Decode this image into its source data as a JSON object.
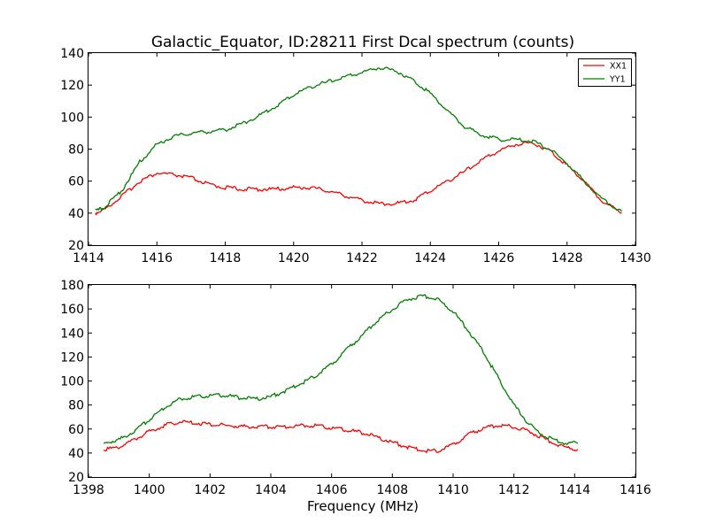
{
  "figure": {
    "title": "Galactic_Equator, ID:28211 First Dcal spectrum (counts)"
  },
  "chart_data": [
    {
      "type": "line",
      "title": "Galactic_Equator, ID:28211 First Dcal spectrum (counts)",
      "xlabel": "",
      "ylabel": "",
      "xlim": [
        1414,
        1430
      ],
      "ylim": [
        20,
        140
      ],
      "xticks": [
        "1414",
        "1416",
        "1418",
        "1420",
        "1422",
        "1424",
        "1426",
        "1428",
        "1430"
      ],
      "yticks": [
        "20",
        "40",
        "60",
        "80",
        "100",
        "120",
        "140"
      ],
      "grid": false,
      "legend": "top-right",
      "x": [
        1414.2,
        1414.5,
        1415.0,
        1415.5,
        1416.0,
        1416.5,
        1417.0,
        1417.5,
        1418.0,
        1418.5,
        1419.0,
        1419.5,
        1420.0,
        1420.5,
        1421.0,
        1421.5,
        1422.0,
        1422.5,
        1423.0,
        1423.5,
        1424.0,
        1424.5,
        1425.0,
        1425.5,
        1426.0,
        1426.5,
        1427.0,
        1427.5,
        1428.0,
        1428.5,
        1429.0,
        1429.6
      ],
      "series": [
        {
          "name": "XX1",
          "color": "#ff0000",
          "values": [
            40,
            43,
            51,
            60,
            65,
            64,
            62,
            58,
            56,
            55,
            55,
            55,
            56,
            56,
            54,
            51,
            48,
            46,
            46,
            48,
            54,
            60,
            66,
            73,
            79,
            83,
            84,
            79,
            70,
            60,
            48,
            40
          ]
        },
        {
          "name": "YY1",
          "color": "#008000",
          "values": [
            41,
            44,
            55,
            72,
            83,
            88,
            90,
            91,
            92,
            96,
            101,
            107,
            114,
            119,
            122,
            125,
            128,
            131,
            129,
            123,
            115,
            104,
            94,
            89,
            86,
            86,
            85,
            80,
            71,
            60,
            49,
            41
          ]
        }
      ]
    },
    {
      "type": "line",
      "title": "",
      "xlabel": "Frequency (MHz)",
      "ylabel": "",
      "xlim": [
        1398,
        1416
      ],
      "ylim": [
        20,
        180
      ],
      "xticks": [
        "1398",
        "1400",
        "1402",
        "1404",
        "1406",
        "1408",
        "1410",
        "1412",
        "1414",
        "1416"
      ],
      "yticks": [
        "20",
        "40",
        "60",
        "80",
        "100",
        "120",
        "140",
        "160",
        "180"
      ],
      "grid": false,
      "x": [
        1398.5,
        1399.0,
        1399.5,
        1400.0,
        1400.5,
        1401.0,
        1401.5,
        1402.0,
        1402.5,
        1403.0,
        1403.5,
        1404.0,
        1404.5,
        1405.0,
        1405.5,
        1406.0,
        1406.5,
        1407.0,
        1407.5,
        1408.0,
        1408.5,
        1409.0,
        1409.5,
        1410.0,
        1410.5,
        1411.0,
        1411.5,
        1412.0,
        1412.5,
        1413.0,
        1413.5,
        1414.1
      ],
      "series": [
        {
          "name": "XX1",
          "color": "#ff0000",
          "values": [
            43,
            45,
            51,
            58,
            63,
            66,
            65,
            64,
            63,
            62,
            62,
            62,
            62,
            63,
            63,
            61,
            59,
            57,
            53,
            49,
            45,
            42,
            42,
            47,
            55,
            61,
            63,
            62,
            58,
            52,
            46,
            43
          ]
        },
        {
          "name": "YY1",
          "color": "#008000",
          "values": [
            48,
            51,
            58,
            68,
            78,
            85,
            87,
            88,
            88,
            86,
            85,
            87,
            92,
            98,
            105,
            114,
            126,
            138,
            150,
            160,
            168,
            171,
            168,
            158,
            142,
            124,
            102,
            80,
            64,
            54,
            49,
            48
          ]
        }
      ]
    }
  ]
}
